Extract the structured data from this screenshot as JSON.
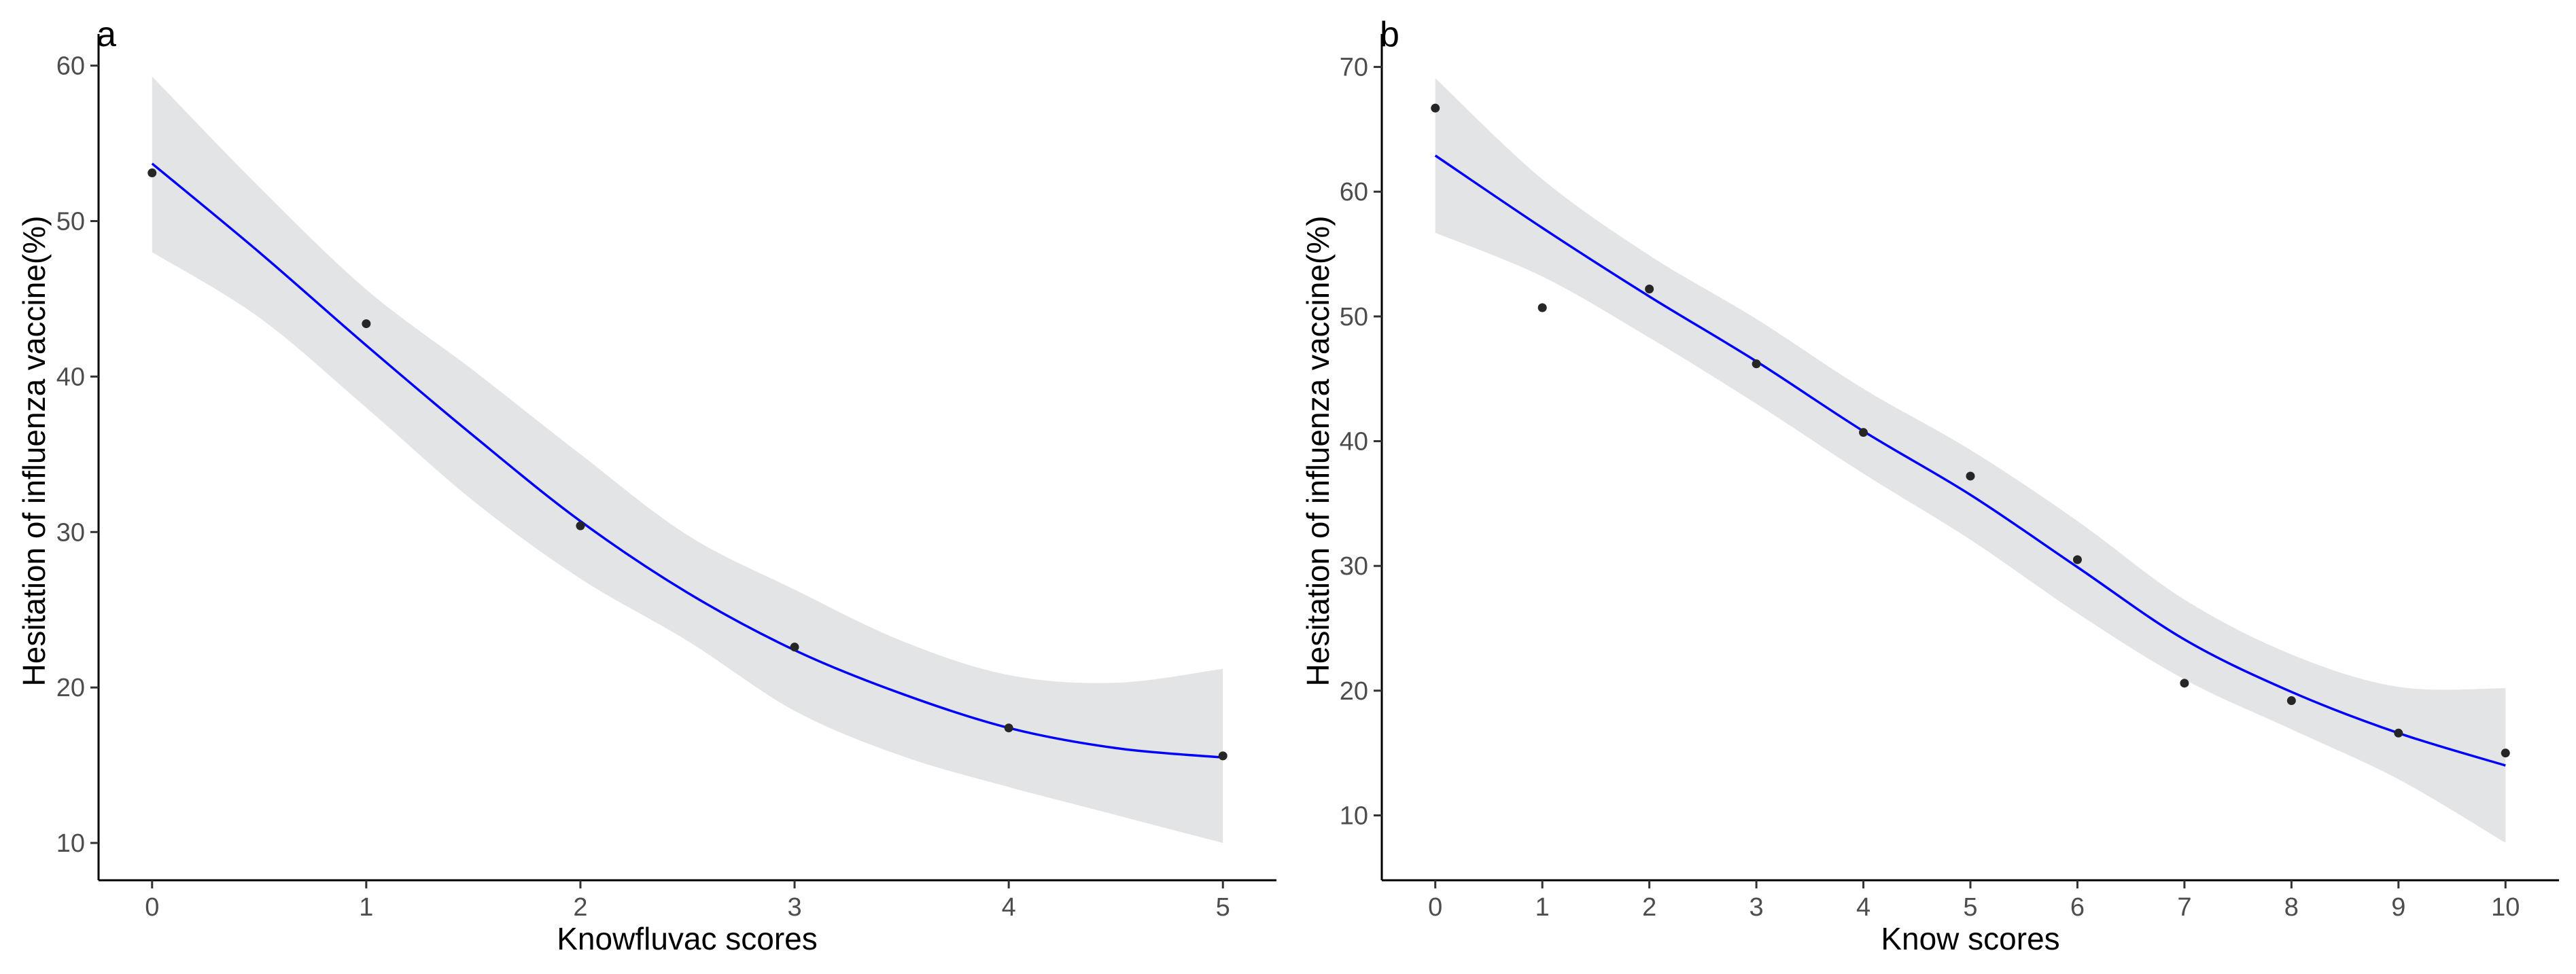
{
  "colors": {
    "ribbon": "#e3e4e5",
    "fit_line": "#0000ff",
    "points": "#262626"
  },
  "chart_data": [
    {
      "type": "scatter",
      "panel_label": "a",
      "title": "",
      "xlabel": "Knowfluvac scores",
      "ylabel": "Hesitation of influenza vaccine(%)",
      "xlim": [
        -0.25,
        5.25
      ],
      "ylim": [
        7.6,
        61.6
      ],
      "x_ticks": [
        0,
        1,
        2,
        3,
        4,
        5
      ],
      "y_ticks": [
        10,
        20,
        30,
        40,
        50,
        60
      ],
      "points": {
        "x": [
          0,
          1,
          2,
          3,
          4,
          5
        ],
        "y": [
          53.1,
          43.4,
          30.4,
          22.6,
          17.4,
          15.6
        ]
      },
      "fit": {
        "method": "loess",
        "x": [
          0,
          0.5,
          1,
          1.5,
          2,
          2.5,
          3,
          3.5,
          4,
          4.5,
          5
        ],
        "y": [
          53.7,
          48.0,
          42.0,
          36.2,
          30.7,
          26.1,
          22.4,
          19.6,
          17.4,
          16.1,
          15.5
        ],
        "ci_lower": [
          48.0,
          43.8,
          38.0,
          32.0,
          27.0,
          23.0,
          18.5,
          15.6,
          13.6,
          11.8,
          10.0
        ],
        "ci_upper": [
          59.3,
          52.2,
          45.6,
          40.4,
          35.0,
          29.8,
          26.3,
          23.0,
          20.8,
          20.3,
          21.2
        ]
      }
    },
    {
      "type": "scatter",
      "panel_label": "b",
      "title": "",
      "xlabel": "Know scores",
      "ylabel": "Hesitation of influenza vaccine(%)",
      "xlim": [
        -0.5,
        10.5
      ],
      "ylim": [
        4.8,
        72.1
      ],
      "x_ticks": [
        0,
        1,
        2,
        3,
        4,
        5,
        6,
        7,
        8,
        9,
        10
      ],
      "y_ticks": [
        10,
        20,
        30,
        40,
        50,
        60,
        70
      ],
      "points": {
        "x": [
          0,
          1,
          2,
          3,
          4,
          5,
          6,
          7,
          8,
          9,
          10
        ],
        "y": [
          66.7,
          50.7,
          52.2,
          46.2,
          40.7,
          37.2,
          30.5,
          20.6,
          19.2,
          16.6,
          15.0
        ]
      },
      "fit": {
        "method": "loess",
        "x": [
          0,
          1,
          2,
          3,
          4,
          5,
          6,
          7,
          8,
          9,
          10
        ],
        "y": [
          62.9,
          57.1,
          51.6,
          46.4,
          40.8,
          35.7,
          29.9,
          24.1,
          19.9,
          16.6,
          14.0
        ],
        "ci_lower": [
          56.7,
          53.2,
          48.3,
          43.0,
          37.4,
          32.1,
          26.2,
          20.9,
          16.9,
          12.9,
          7.8
        ],
        "ci_upper": [
          69.1,
          61.0,
          54.9,
          49.8,
          44.2,
          39.3,
          33.6,
          27.3,
          22.9,
          20.3,
          20.2
        ]
      }
    }
  ]
}
